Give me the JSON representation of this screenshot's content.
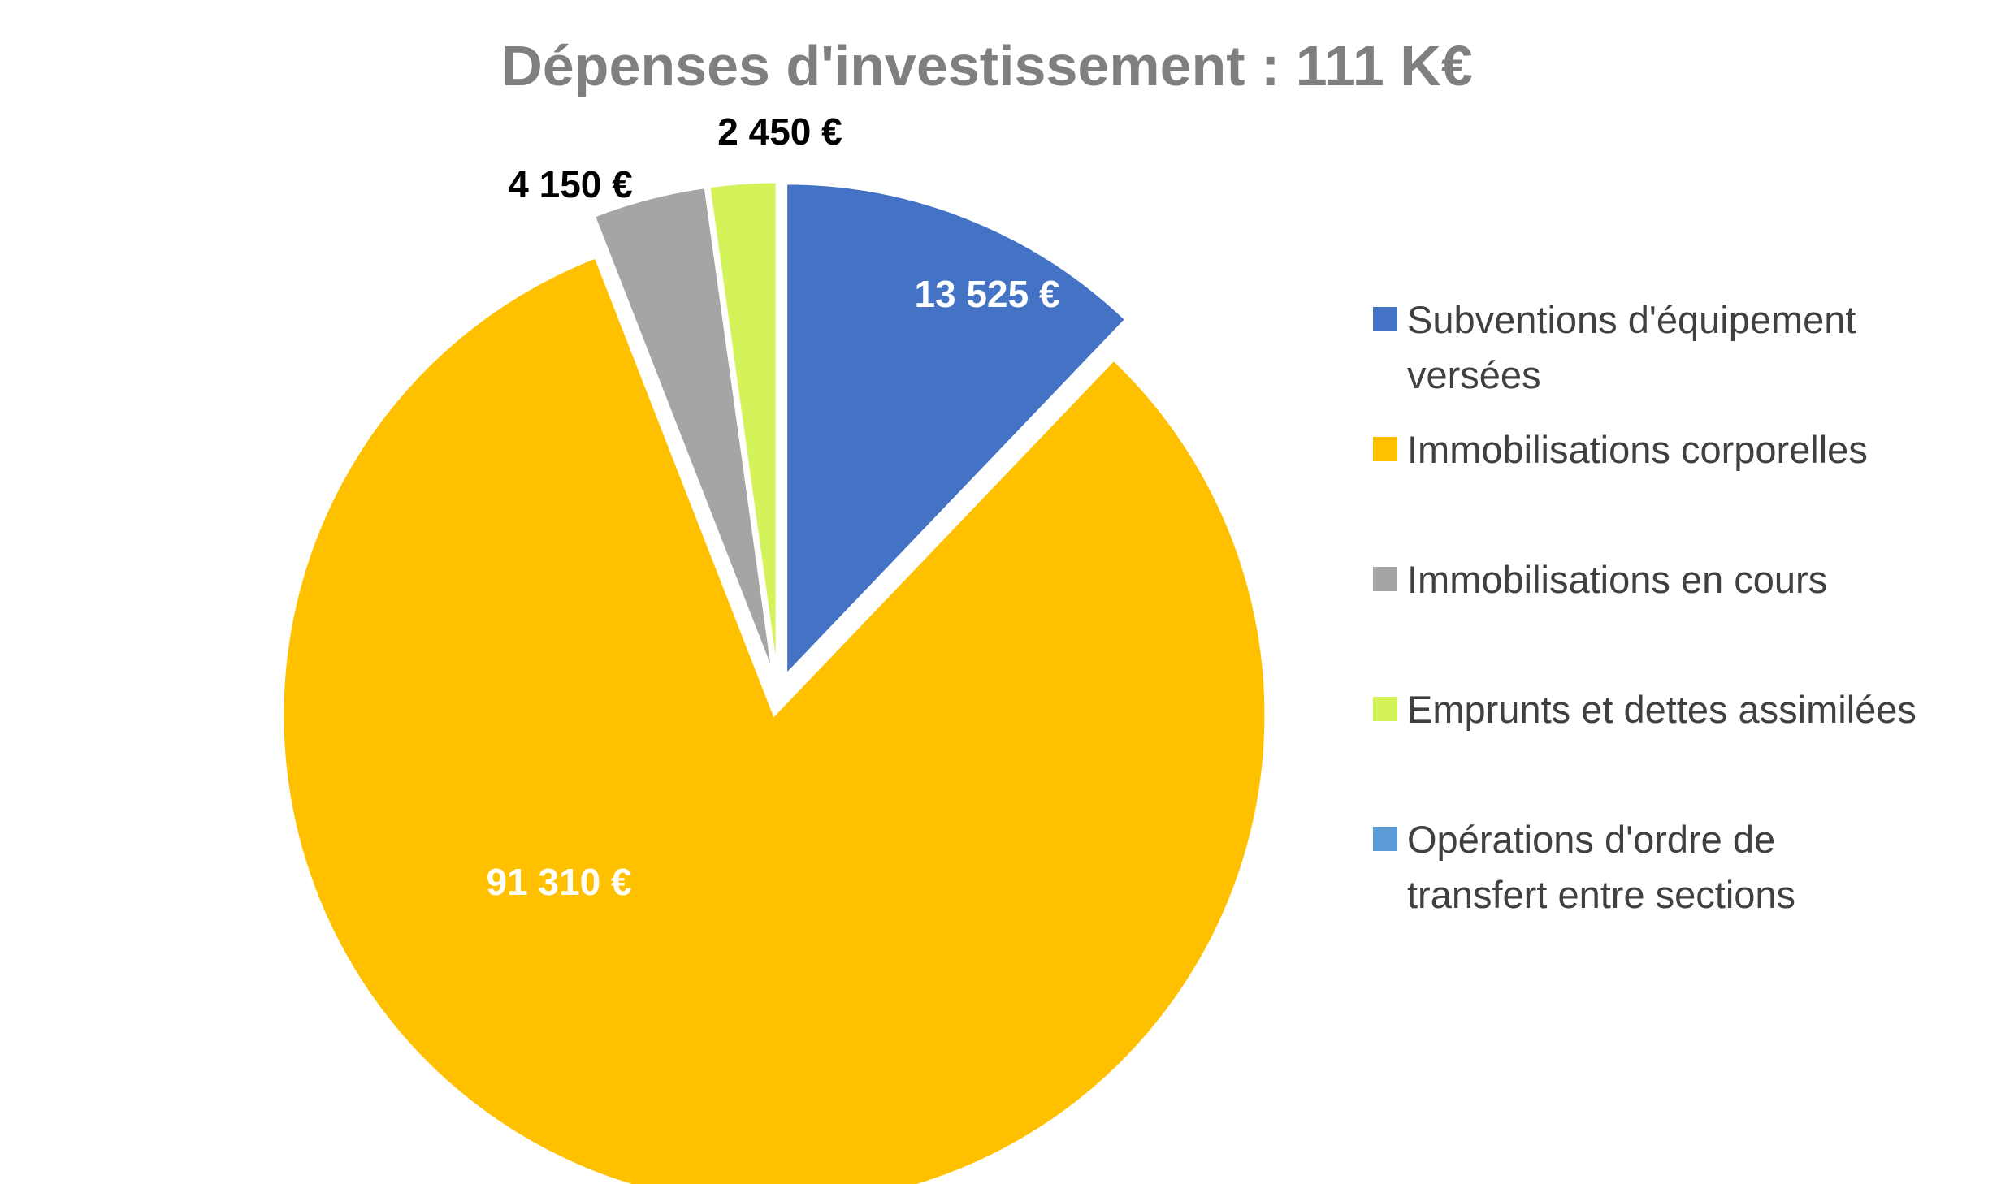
{
  "chart_data": {
    "type": "pie",
    "title": "Dépenses d'investissement : 111 K€",
    "legend_position": "right",
    "categories": [
      "Subventions d'équipement versées",
      "Immobilisations corporelles",
      "Immobilisations en cours",
      "Emprunts et dettes assimilées",
      "Opérations d'ordre de transfert entre sections"
    ],
    "legend_lines": [
      [
        "Subventions d'équipement",
        "versées"
      ],
      [
        "Immobilisations corporelles"
      ],
      [
        "Immobilisations en cours"
      ],
      [
        "Emprunts et dettes assimilées"
      ],
      [
        "Opérations d'ordre de",
        "transfert entre sections"
      ]
    ],
    "values": [
      13525,
      91310,
      4150,
      2450,
      0
    ],
    "data_labels": [
      "13 525 €",
      "91 310 €",
      "4 150 €",
      "2 450 €",
      ""
    ],
    "colors": [
      "#4472C4",
      "#FFC000",
      "#A5A5A5",
      "#D4F25A",
      "#5B9BD5"
    ],
    "label_colors": [
      "#ffffff",
      "#ffffff",
      "#000000",
      "#000000",
      "#000000"
    ],
    "exploded": true
  }
}
